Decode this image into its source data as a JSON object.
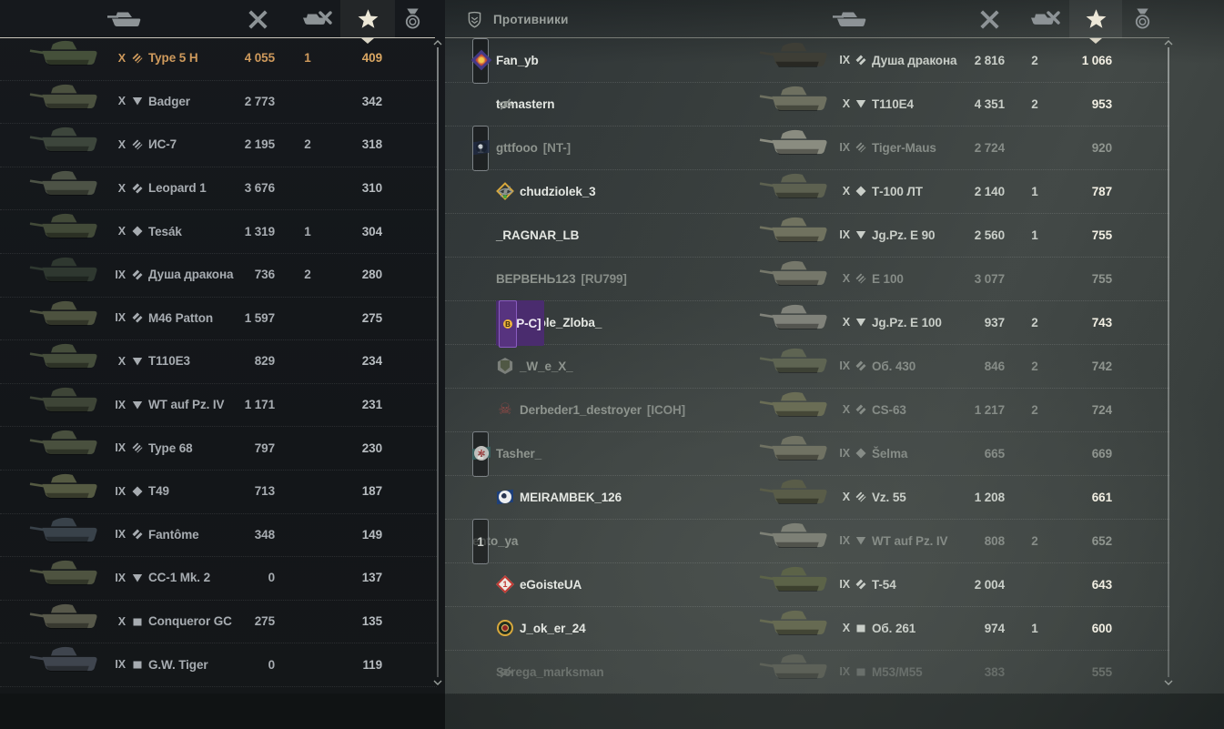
{
  "left_panel": {
    "columns": {
      "icons": [
        "vehicle",
        "damage",
        "kills",
        "experience",
        "medals"
      ],
      "selected": "experience"
    },
    "rows": [
      {
        "tier": "X",
        "class": "HT",
        "vehicle": "Type 5 H",
        "damage": "4 055",
        "frags": "1",
        "xp": "409",
        "is_self": true
      },
      {
        "tier": "X",
        "class": "TD",
        "vehicle": "Badger",
        "damage": "2 773",
        "frags": "",
        "xp": "342"
      },
      {
        "tier": "X",
        "class": "HT",
        "vehicle": "ИС-7",
        "damage": "2 195",
        "frags": "2",
        "xp": "318"
      },
      {
        "tier": "X",
        "class": "MT",
        "vehicle": "Leopard 1",
        "damage": "3 676",
        "frags": "",
        "xp": "310"
      },
      {
        "tier": "X",
        "class": "LT",
        "vehicle": "Tesák",
        "damage": "1 319",
        "frags": "1",
        "xp": "304"
      },
      {
        "tier": "IX",
        "class": "MT",
        "vehicle": "Душа дракона",
        "damage": "736",
        "frags": "2",
        "xp": "280"
      },
      {
        "tier": "IX",
        "class": "MT",
        "vehicle": "M46 Patton",
        "damage": "1 597",
        "frags": "",
        "xp": "275"
      },
      {
        "tier": "X",
        "class": "TD",
        "vehicle": "T110E3",
        "damage": "829",
        "frags": "",
        "xp": "234"
      },
      {
        "tier": "IX",
        "class": "TD",
        "vehicle": "WT auf Pz. IV",
        "damage": "1 171",
        "frags": "",
        "xp": "231"
      },
      {
        "tier": "IX",
        "class": "HT",
        "vehicle": "Type 68",
        "damage": "797",
        "frags": "",
        "xp": "230"
      },
      {
        "tier": "IX",
        "class": "LT",
        "vehicle": "T49",
        "damage": "713",
        "frags": "",
        "xp": "187"
      },
      {
        "tier": "IX",
        "class": "MT",
        "vehicle": "Fantôme",
        "damage": "348",
        "frags": "",
        "xp": "149"
      },
      {
        "tier": "IX",
        "class": "TD",
        "vehicle": "CC-1 Mk. 2",
        "damage": "0",
        "frags": "",
        "xp": "137"
      },
      {
        "tier": "X",
        "class": "SPG",
        "vehicle": "Conqueror GC",
        "damage": "275",
        "frags": "",
        "xp": "135"
      },
      {
        "tier": "IX",
        "class": "SPG",
        "vehicle": "G.W. Tiger",
        "damage": "0",
        "frags": "",
        "xp": "119"
      }
    ]
  },
  "right_panel": {
    "title": "Противники",
    "columns": {
      "icons": [
        "vehicle",
        "damage",
        "kills",
        "experience",
        "medals"
      ],
      "selected": "experience"
    },
    "rows": [
      {
        "squad": "2",
        "emblem": "em-banner-gold",
        "name": "Fan_yb",
        "tag": "",
        "hidden": false,
        "alive": true,
        "tier": "IX",
        "class": "MT",
        "vehicle": "Душа дракона",
        "damage": "2 816",
        "frags": "2",
        "xp": "1 066"
      },
      {
        "squad": "",
        "emblem": "",
        "name": "tomastern",
        "tag": "",
        "hidden": true,
        "alive": true,
        "tier": "X",
        "class": "TD",
        "vehicle": "T110E4",
        "damage": "4 351",
        "frags": "2",
        "xp": "953"
      },
      {
        "squad": "1",
        "emblem": "em-steam-dark",
        "name": "gttfooo",
        "tag": "[NT-]",
        "hidden": false,
        "alive": false,
        "tier": "IX",
        "class": "HT",
        "vehicle": "Tiger-Maus",
        "damage": "2 724",
        "frags": "",
        "xp": "920"
      },
      {
        "squad": "",
        "emblem": "em-gold-diamond",
        "name": "chudziolek_3",
        "tag": "",
        "hidden": true,
        "alive": true,
        "tier": "X",
        "class": "LT",
        "vehicle": "Т-100 ЛТ",
        "damage": "2 140",
        "frags": "1",
        "xp": "787"
      },
      {
        "squad": "",
        "emblem": "",
        "name": "_RAGNAR_LB",
        "tag": "",
        "hidden": false,
        "alive": true,
        "tier": "IX",
        "class": "TD",
        "vehicle": "Jg.Pz. E 90",
        "damage": "2 560",
        "frags": "1",
        "xp": "755"
      },
      {
        "squad": "",
        "emblem": "",
        "name": "ВЕРВЕНЬ123",
        "tag": "[RU799]",
        "hidden": false,
        "alive": false,
        "tier": "X",
        "class": "HT",
        "vehicle": "E 100",
        "damage": "3 077",
        "frags": "",
        "xp": "755"
      },
      {
        "squad": "",
        "emblem": "em-bitcoin-gear",
        "name": "_Djole_Zloba_",
        "tag": "[O-P-C]",
        "tag_highlight": true,
        "badge": "bitcoin-chip",
        "hidden": false,
        "alive": true,
        "tier": "X",
        "class": "TD",
        "vehicle": "Jg.Pz. E 100",
        "damage": "937",
        "frags": "2",
        "xp": "743"
      },
      {
        "squad": "",
        "emblem": "em-hex-shield",
        "name": "_W_e_X_",
        "tag": "",
        "hidden": false,
        "alive": false,
        "tier": "IX",
        "class": "MT",
        "vehicle": "Об. 430",
        "damage": "846",
        "frags": "2",
        "xp": "742"
      },
      {
        "squad": "",
        "emblem": "em-red-skull",
        "name": "Derbeder1_destroyer",
        "tag": "[ICOH]",
        "hidden": false,
        "alive": false,
        "tier": "X",
        "class": "MT",
        "vehicle": "CS-63",
        "damage": "1 217",
        "frags": "2",
        "xp": "724"
      },
      {
        "squad": "2",
        "emblem": "em-star-teal",
        "name": "Tasher_",
        "tag": "",
        "hidden": false,
        "alive": false,
        "tier": "IX",
        "class": "LT",
        "vehicle": "Šelma",
        "damage": "665",
        "frags": "",
        "xp": "669"
      },
      {
        "squad": "",
        "emblem": "em-steam-white",
        "name": "MEIRAMBEK_126",
        "tag": "",
        "hidden": false,
        "alive": true,
        "tier": "X",
        "class": "HT",
        "vehicle": "Vz. 55",
        "damage": "1 208",
        "frags": "",
        "xp": "661"
      },
      {
        "squad": "1",
        "emblem": "",
        "name": "ento_ya",
        "tag": "",
        "hidden": false,
        "alive": false,
        "tier": "IX",
        "class": "TD",
        "vehicle": "WT auf Pz. IV",
        "damage": "808",
        "frags": "2",
        "xp": "652"
      },
      {
        "squad": "",
        "emblem": "em-red-diamond",
        "name": "eGoisteUA",
        "tag": "",
        "hidden": false,
        "alive": true,
        "tier": "IX",
        "class": "MT",
        "vehicle": "T-54",
        "damage": "2 004",
        "frags": "",
        "xp": "643"
      },
      {
        "squad": "",
        "emblem": "em-gold-wreath",
        "name": "J_ok_er_24",
        "tag": "",
        "hidden": false,
        "alive": true,
        "tier": "X",
        "class": "SPG",
        "vehicle": "Об. 261",
        "damage": "974",
        "frags": "1",
        "xp": "600"
      },
      {
        "squad": "",
        "emblem": "",
        "name": "Serega_marksman",
        "tag": "",
        "hidden": true,
        "alive": false,
        "faded": true,
        "tier": "IX",
        "class": "SPG",
        "vehicle": "M53/M55",
        "damage": "383",
        "frags": "",
        "xp": "555"
      }
    ]
  },
  "colors": {
    "self_row_text": "#cf9a5c",
    "ally_text": "#a7acb1",
    "enemy_alive_name": "#e4e7e2",
    "enemy_dead_text": "#868c87",
    "xp_bright": "#f2efe3",
    "star_tab_glyph": "#ece7d7",
    "clan_tag_highlight_bg": "#4a2c6e"
  }
}
